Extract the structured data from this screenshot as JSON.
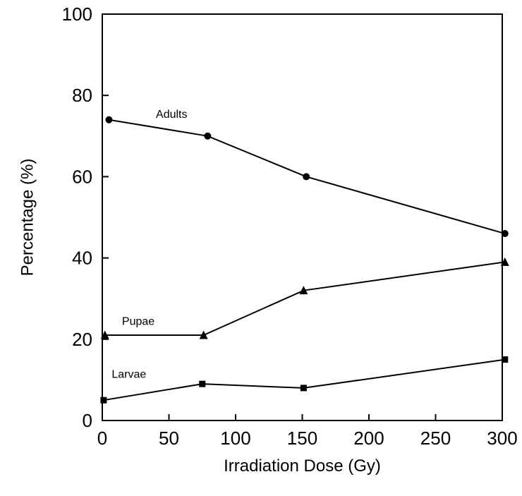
{
  "chart_data": {
    "type": "line",
    "title": "",
    "xlabel": "Irradiation Dose (Gy)",
    "ylabel": "Percentage (%)",
    "xlim": [
      0,
      300
    ],
    "ylim": [
      0,
      100
    ],
    "xticks": [
      0,
      50,
      100,
      150,
      200,
      250,
      300
    ],
    "yticks": [
      0,
      20,
      40,
      60,
      80,
      100
    ],
    "grid": false,
    "legend": "none",
    "series": [
      {
        "name": "Adults",
        "marker": "circle",
        "points": [
          [
            5,
            74
          ],
          [
            79,
            70
          ],
          [
            153,
            60
          ],
          [
            302,
            46
          ]
        ]
      },
      {
        "name": "Pupae",
        "marker": "triangle",
        "points": [
          [
            2,
            21
          ],
          [
            76,
            21
          ],
          [
            151,
            32
          ],
          [
            302,
            39
          ]
        ]
      },
      {
        "name": "Larvae",
        "marker": "square",
        "points": [
          [
            1,
            5
          ],
          [
            75,
            9
          ],
          [
            151,
            8
          ],
          [
            302,
            15
          ]
        ]
      }
    ]
  }
}
